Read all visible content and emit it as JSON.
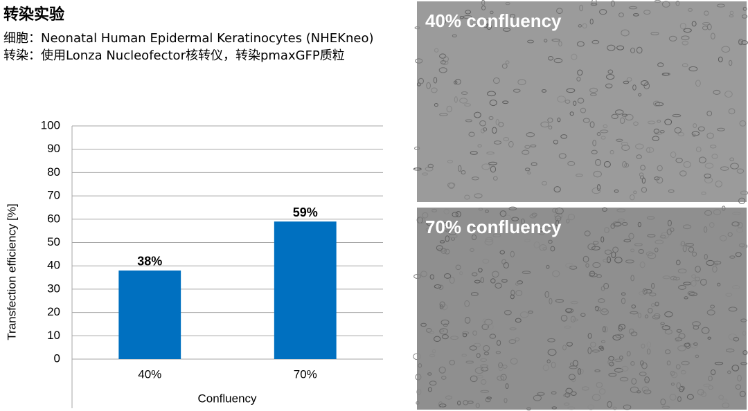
{
  "header": {
    "title": "转染实验",
    "lines": [
      "细胞：Neonatal Human Epidermal Keratinocytes (NHEKneo)",
      "转染：使用Lonza Nucleofector核转仪，转染pmaxGFP质粒"
    ]
  },
  "chart_data": {
    "type": "bar",
    "categories": [
      "40%",
      "70%"
    ],
    "values": [
      38,
      59
    ],
    "value_labels": [
      "38%",
      "59%"
    ],
    "color": "#0070c0",
    "xlabel": "Confluency",
    "ylabel": "Transfection efficiency [%]",
    "ylim": [
      0,
      100
    ],
    "yticks": [
      0,
      10,
      20,
      30,
      40,
      50,
      60,
      70,
      80,
      90,
      100
    ],
    "grid": true
  },
  "images": [
    {
      "caption": "40% confluency"
    },
    {
      "caption": "70% confluency"
    }
  ]
}
